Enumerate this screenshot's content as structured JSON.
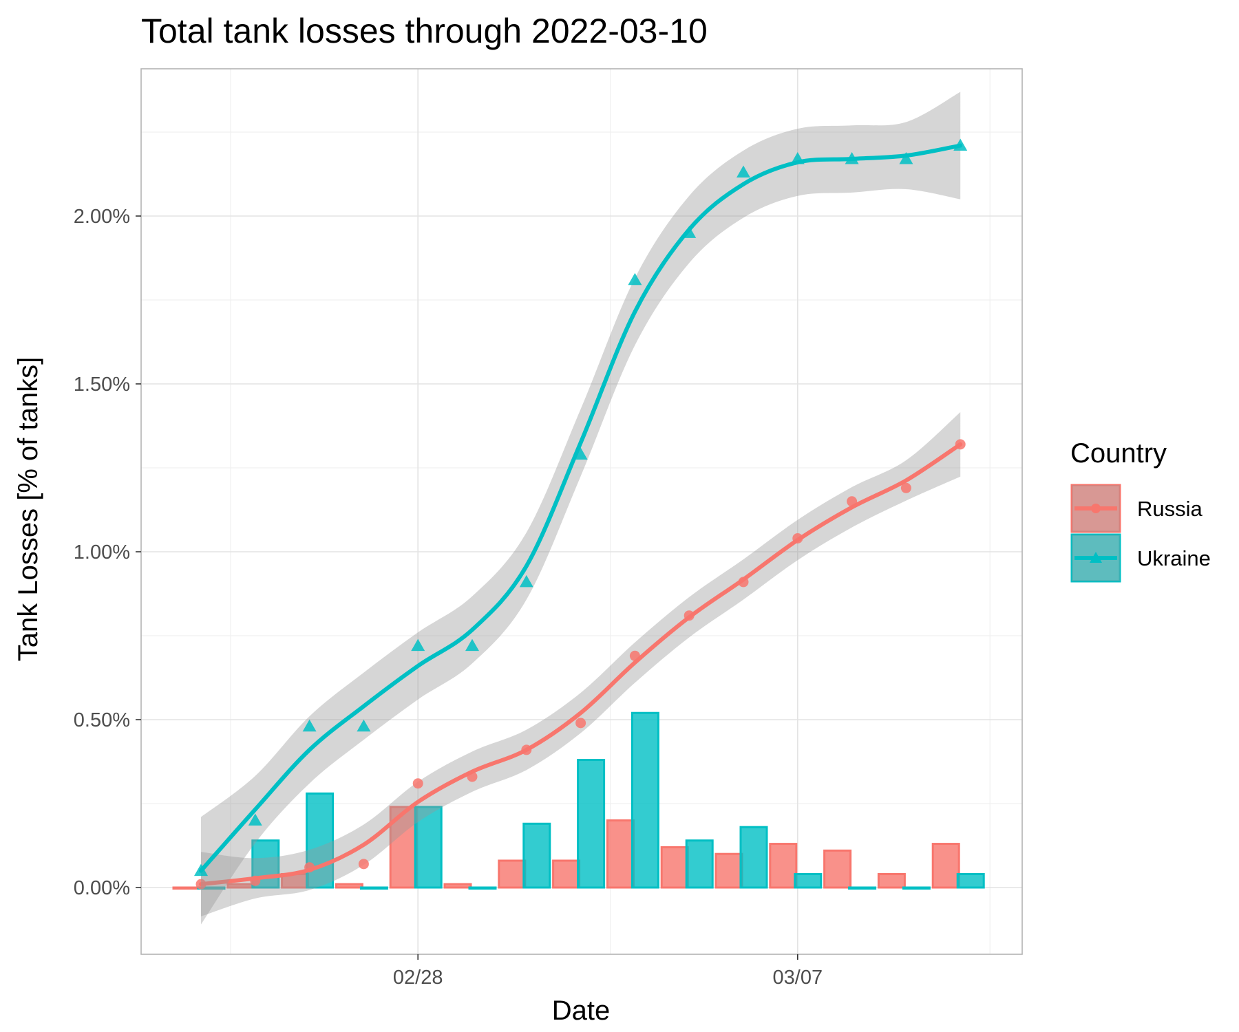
{
  "chart_data": {
    "type": "line",
    "title": "Total tank losses through 2022-03-10",
    "xlabel": "Date",
    "ylabel": "Tank Losses [% of tanks]",
    "x_tick_labels": [
      "02/28",
      "03/07"
    ],
    "y_tick_labels": [
      "0.00%",
      "0.50%",
      "1.00%",
      "1.50%",
      "2.00%"
    ],
    "ylim": [
      -0.2,
      2.45
    ],
    "grid": true,
    "legend": {
      "title": "Country",
      "position": "right"
    },
    "x": [
      "02/25",
      "02/26",
      "02/27",
      "02/28",
      "03/01",
      "03/02",
      "03/03",
      "03/04",
      "03/05",
      "03/06",
      "03/07",
      "03/08",
      "03/09",
      "03/10"
    ],
    "series": [
      {
        "name": "Russia",
        "color": "#f8766d",
        "marker": "circle",
        "cumulative": [
          0.01,
          0.02,
          0.06,
          0.07,
          0.31,
          0.33,
          0.41,
          0.49,
          0.69,
          0.81,
          0.91,
          1.04,
          1.15,
          1.19,
          1.32
        ],
        "daily": [
          0.0,
          0.01,
          0.04,
          0.01,
          0.24,
          0.01,
          0.08,
          0.08,
          0.2,
          0.12,
          0.1,
          0.13,
          0.11,
          0.04,
          0.13
        ]
      },
      {
        "name": "Ukraine",
        "color": "#00bfc4",
        "marker": "triangle",
        "cumulative": [
          0.05,
          0.2,
          0.48,
          0.48,
          0.72,
          0.72,
          0.91,
          1.29,
          1.81,
          1.95,
          2.13,
          2.17,
          2.17,
          2.17,
          2.21
        ],
        "daily": [
          0.0,
          0.14,
          0.28,
          0.0,
          0.24,
          0.0,
          0.19,
          0.38,
          0.52,
          0.14,
          0.18,
          0.04,
          0.0,
          0.0,
          0.04
        ]
      }
    ],
    "days": [
      "02/24",
      "02/25",
      "02/26",
      "02/27",
      "02/28",
      "03/01",
      "03/02",
      "03/03",
      "03/04",
      "03/05",
      "03/06",
      "03/07",
      "03/08",
      "03/09",
      "03/10"
    ]
  }
}
